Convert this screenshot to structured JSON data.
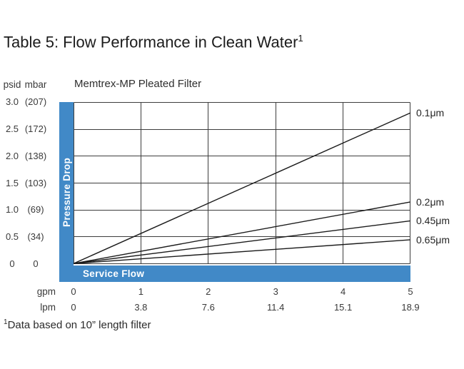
{
  "title": {
    "text": "Table 5: Flow Performance in Clean Water",
    "superscript": "1"
  },
  "footnote": {
    "superscript": "1",
    "text": "Data based on 10” length filter"
  },
  "labels": {
    "y_unit_psid": "psid",
    "y_unit_mbar": "mbar",
    "x_unit_gpm": "gpm",
    "x_unit_lpm": "lpm",
    "pressure_drop": "Pressure Drop",
    "service_flow": "Service Flow"
  },
  "colors": {
    "accent_blue": "#4189c7",
    "grid": "#3d3d3d",
    "line": "#1b1b1b",
    "bar_text": "#ffffff"
  },
  "chart_data": {
    "type": "line",
    "title": "Memtrex-MP Pleated Filter",
    "xlabel": "Service Flow",
    "ylabel": "Pressure Drop",
    "grid": true,
    "legend_position": "right",
    "x_axis": {
      "gpm": [
        0,
        1,
        2,
        3,
        4,
        5
      ],
      "lpm": [
        "0",
        "3.8",
        "7.6",
        "11.4",
        "15.1",
        "18.9"
      ],
      "range_gpm": [
        0,
        5
      ]
    },
    "y_axis": {
      "psid": [
        "3.0",
        "2.5",
        "2.0",
        "1.5",
        "1.0",
        "0.5",
        "0"
      ],
      "mbar": [
        "(207)",
        "(172)",
        "(138)",
        "(103)",
        "(69)",
        "(34)",
        "0"
      ],
      "range_psid": [
        0,
        3
      ]
    },
    "series": [
      {
        "name": "0.1μm",
        "x": [
          0,
          5
        ],
        "psid": [
          0,
          2.8
        ]
      },
      {
        "name": "0.2μm",
        "x": [
          0,
          5
        ],
        "psid": [
          0,
          1.15
        ]
      },
      {
        "name": "0.45μm",
        "x": [
          0,
          5
        ],
        "psid": [
          0,
          0.8
        ]
      },
      {
        "name": "0.65μm",
        "x": [
          0,
          5
        ],
        "psid": [
          0,
          0.45
        ]
      }
    ]
  }
}
